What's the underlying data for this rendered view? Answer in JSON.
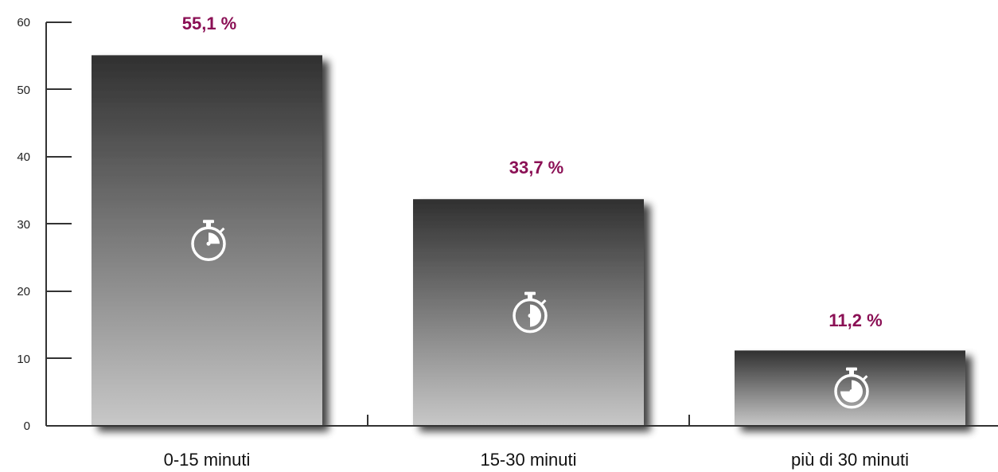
{
  "chart_data": {
    "type": "bar",
    "categories": [
      "0-15 minuti",
      "15-30 minuti",
      "più di 30 minuti"
    ],
    "values": [
      55.1,
      33.7,
      11.2
    ],
    "value_labels": [
      "55,1 %",
      "33,7 %",
      "11,2 %"
    ],
    "title": "",
    "xlabel": "",
    "ylabel": "",
    "ylim": [
      0,
      60
    ],
    "yticks": [
      "0",
      "10",
      "20",
      "30",
      "40",
      "50",
      "60"
    ],
    "grid": false,
    "legend": "none",
    "bar_icons": [
      "stopwatch-quarter-icon",
      "stopwatch-half-icon",
      "stopwatch-three-quarter-icon"
    ]
  },
  "colors": {
    "bar_top": "#303030",
    "bar_bottom": "#c8c8c8",
    "value_label": "#8b1055",
    "axis": "#333333"
  }
}
